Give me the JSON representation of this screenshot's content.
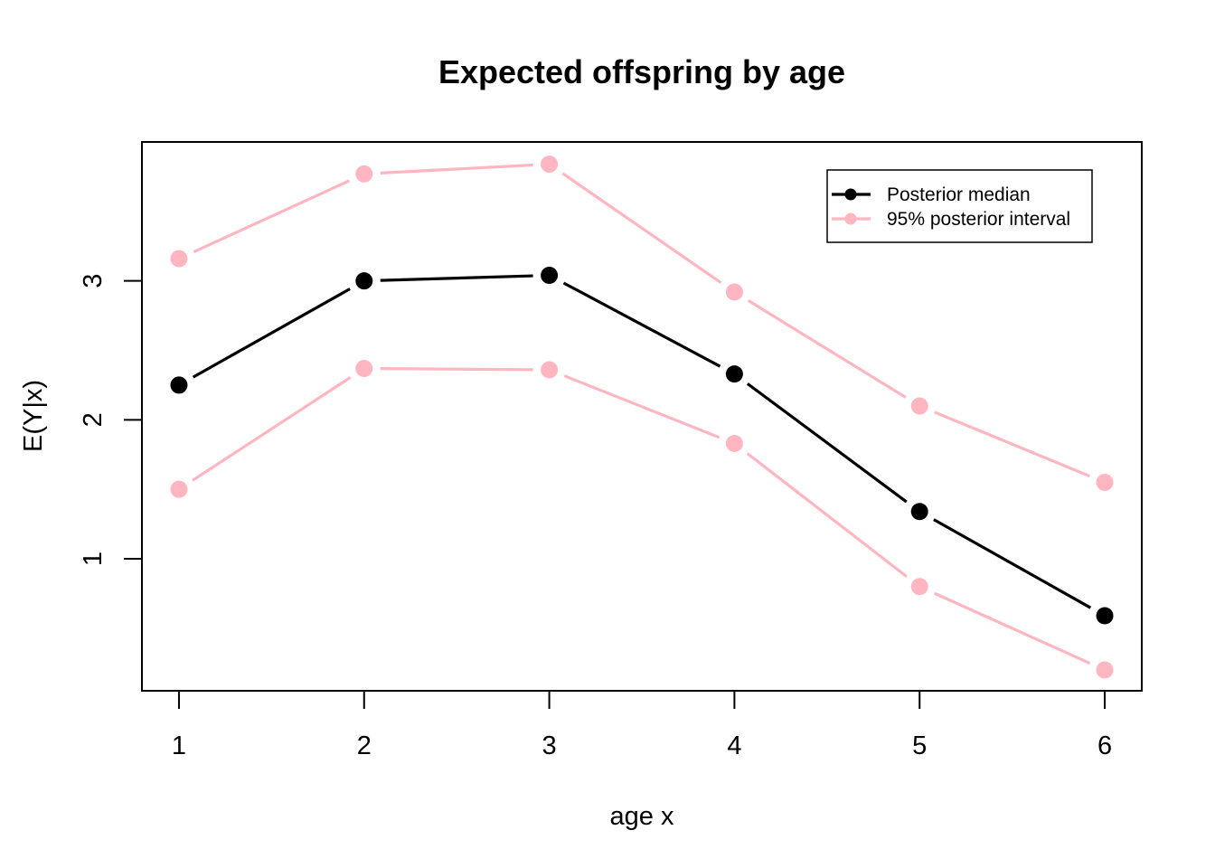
{
  "chart_data": {
    "type": "line",
    "title": "Expected offspring by age",
    "xlabel": "age x",
    "ylabel": "E(Y|x)",
    "x": [
      1,
      2,
      3,
      4,
      5,
      6
    ],
    "xlim": [
      0.8,
      6.2
    ],
    "ylim": [
      0.05,
      4.0
    ],
    "x_ticks": [
      1,
      2,
      3,
      4,
      5,
      6
    ],
    "y_ticks": [
      1,
      2,
      3
    ],
    "grid": false,
    "legend_position": "top-right",
    "series": [
      {
        "name": "Posterior median",
        "color": "#000000",
        "values": [
          2.25,
          3.0,
          3.04,
          2.33,
          1.34,
          0.59
        ],
        "role": "median"
      },
      {
        "name": "95% posterior interval",
        "color": "#FFB6C1",
        "values": [
          3.16,
          3.77,
          3.84,
          2.92,
          2.1,
          1.55
        ],
        "role": "upper"
      },
      {
        "name": "",
        "color": "#FFB6C1",
        "values": [
          1.5,
          2.37,
          2.36,
          1.83,
          0.8,
          0.2
        ],
        "role": "lower"
      }
    ],
    "legend": [
      {
        "label": "Posterior median",
        "color": "#000000"
      },
      {
        "label": "95% posterior interval",
        "color": "#FFB6C1"
      }
    ]
  }
}
